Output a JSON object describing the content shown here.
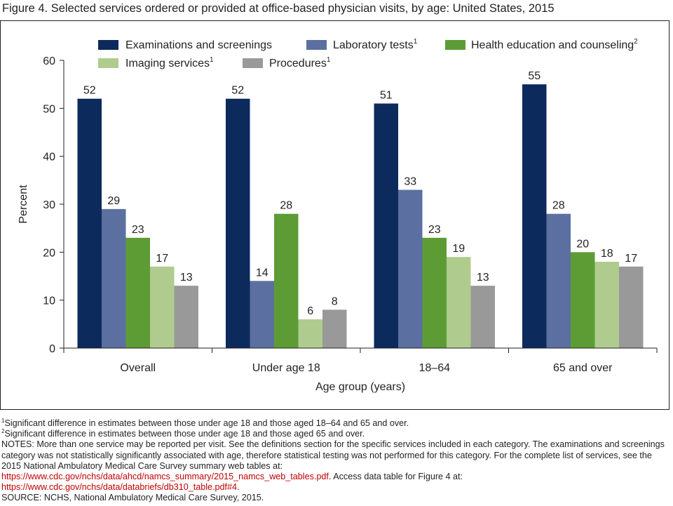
{
  "figure": {
    "title": "Figure 4. Selected services ordered or provided at office-based physician visits, by age: United States, 2015"
  },
  "chart_data": {
    "type": "bar",
    "categories": [
      "Overall",
      "Under age 18",
      "18–64",
      "65 and over"
    ],
    "series": [
      {
        "name": "Examinations and screenings",
        "sup": "",
        "color": "#0c2a5c",
        "values": [
          52,
          52,
          51,
          55
        ]
      },
      {
        "name": "Laboratory tests",
        "sup": "1",
        "color": "#5b70a0",
        "values": [
          29,
          14,
          33,
          28
        ]
      },
      {
        "name": "Health education and counseling",
        "sup": "2",
        "color": "#5d9c35",
        "values": [
          23,
          28,
          23,
          20
        ]
      },
      {
        "name": "Imaging services",
        "sup": "1",
        "color": "#afcc8e",
        "values": [
          17,
          6,
          19,
          18
        ]
      },
      {
        "name": "Procedures",
        "sup": "1",
        "color": "#999999",
        "values": [
          13,
          8,
          13,
          17
        ]
      }
    ],
    "xlabel": "Age group (years)",
    "ylabel": "Percent",
    "ylim": [
      0,
      60
    ],
    "yticks": [
      0,
      10,
      20,
      30,
      40,
      50,
      60
    ],
    "grid": false,
    "legend_position": "top"
  },
  "notes": {
    "footnote1_sup": "1",
    "footnote1": "Significant difference in estimates between those under age 18 and those aged 18–64 and 65 and over.",
    "footnote2_sup": "2",
    "footnote2": "Significant difference in estimates between those under age 18 and those aged 65 and over.",
    "notes_text": "NOTES: More than one service may be reported per visit. See the definitions section for the specific services included in each category. The examinations and screenings category was not statistically significantly associated with age, therefore statistical testing was not performed for this category. For the complete list of services, see the 2015 National Ambulatory Medical Care Survey summary web tables at:",
    "link1": "https://www.cdc.gov/nchs/data/ahcd/namcs_summary/2015_namcs_web_tables.pdf",
    "link1_after": ". Access data table for Figure 4 at:",
    "link2": "https://www.cdc.gov/nchs/data/databriefs/db310_table.pdf#4",
    "link2_after": ".",
    "source": "SOURCE: NCHS, National Ambulatory Medical Care Survey, 2015."
  }
}
